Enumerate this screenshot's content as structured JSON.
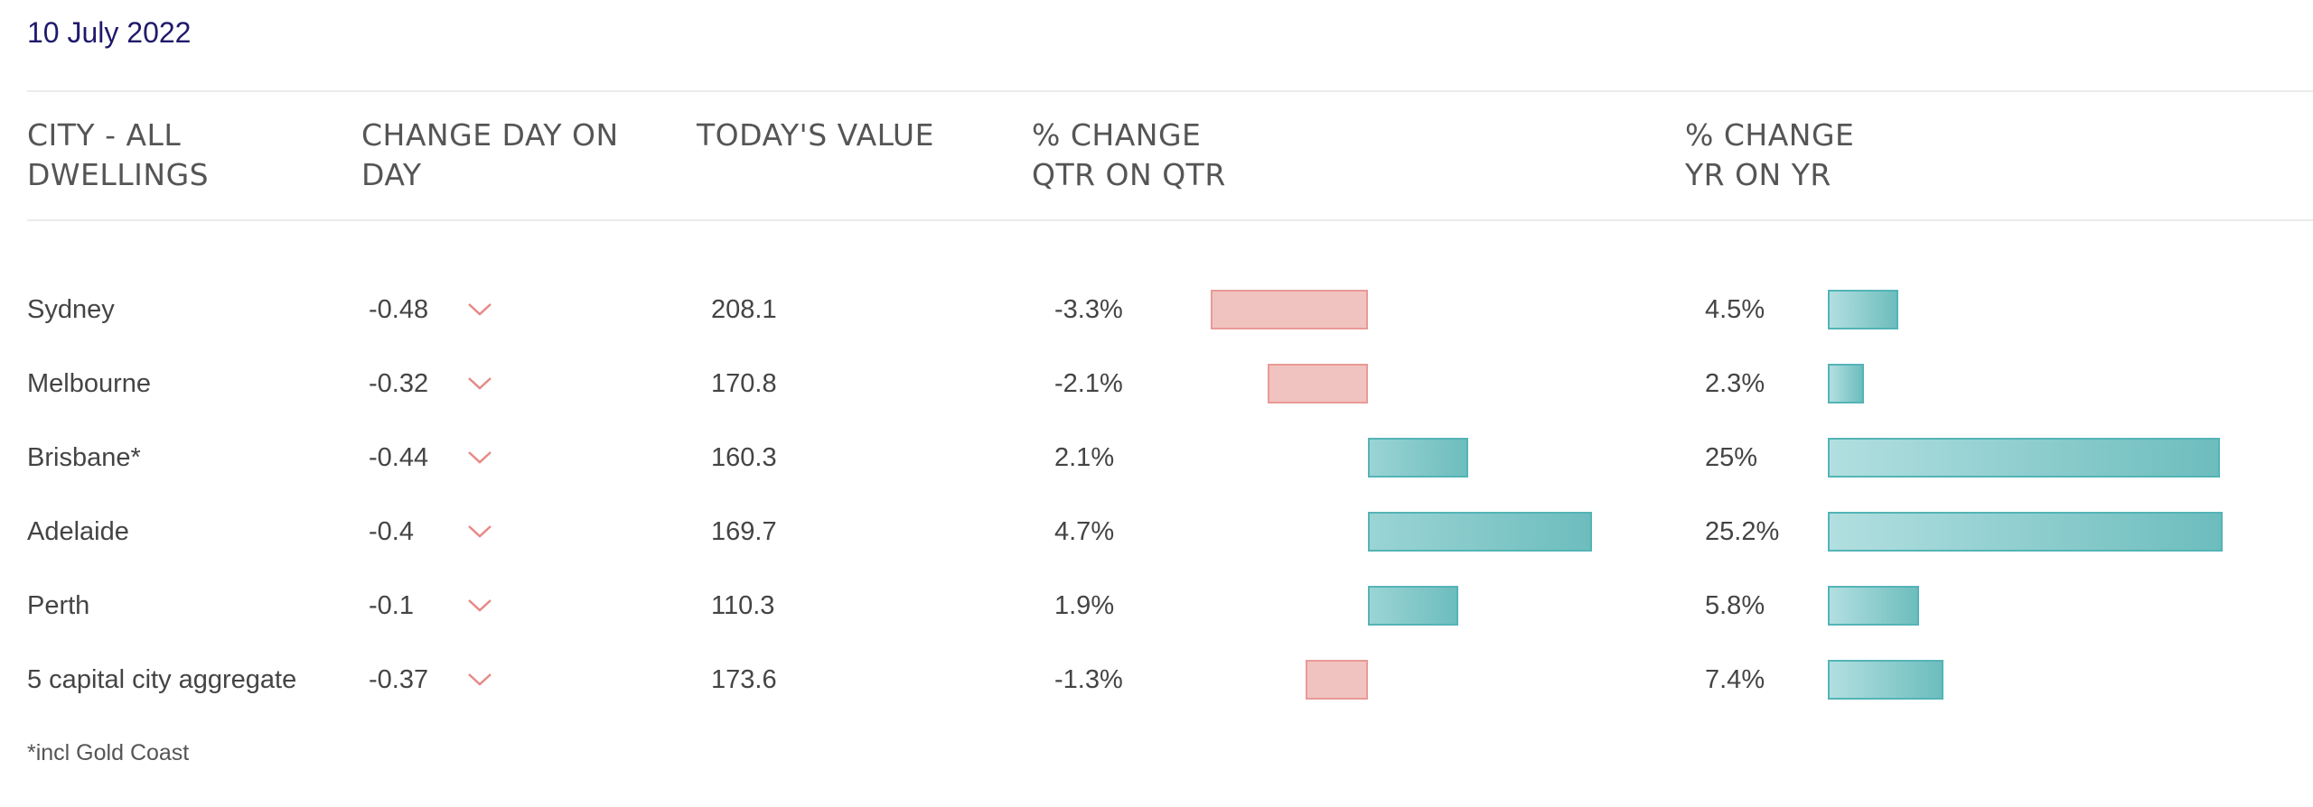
{
  "date": "10 July 2022",
  "headers": {
    "city": "CITY - ALL\nDWELLINGS",
    "change_day": "CHANGE DAY ON\nDAY",
    "today_value": "TODAY'S VALUE",
    "qtr": "% CHANGE\nQTR ON QTR",
    "yr": "% CHANGE\nYR ON YR"
  },
  "colors": {
    "negative": "#e89a96",
    "positive": "#54b4b6",
    "date": "#1f1a6b"
  },
  "icons": {
    "day_trend": "chevron-down-icon"
  },
  "rows": [
    {
      "city": "Sydney",
      "change_day": "-0.48",
      "today_value": "208.1",
      "qtr": "-3.3%",
      "yr": "4.5%"
    },
    {
      "city": "Melbourne",
      "change_day": "-0.32",
      "today_value": "170.8",
      "qtr": "-2.1%",
      "yr": "2.3%"
    },
    {
      "city": "Brisbane*",
      "change_day": "-0.44",
      "today_value": "160.3",
      "qtr": "2.1%",
      "yr": "25%"
    },
    {
      "city": "Adelaide",
      "change_day": "-0.4",
      "today_value": "169.7",
      "qtr": "4.7%",
      "yr": "25.2%"
    },
    {
      "city": "Perth",
      "change_day": "-0.1",
      "today_value": "110.3",
      "qtr": "1.9%",
      "yr": "5.8%"
    },
    {
      "city": "5 capital city aggregate",
      "change_day": "-0.37",
      "today_value": "173.6",
      "qtr": "-1.3%",
      "yr": "7.4%"
    }
  ],
  "chart_data": {
    "type": "table",
    "columns": [
      "CITY - ALL DWELLINGS",
      "CHANGE DAY ON DAY",
      "TODAY'S VALUE",
      "% CHANGE QTR ON QTR",
      "% CHANGE YR ON YR"
    ],
    "categories": [
      "Sydney",
      "Melbourne",
      "Brisbane*",
      "Adelaide",
      "Perth",
      "5 capital city aggregate"
    ],
    "change_day": [
      -0.48,
      -0.32,
      -0.44,
      -0.4,
      -0.1,
      -0.37
    ],
    "today_value": [
      208.1,
      170.8,
      160.3,
      169.7,
      110.3,
      173.6
    ],
    "qtr_change_pct": [
      -3.3,
      -2.1,
      2.1,
      4.7,
      1.9,
      -1.3
    ],
    "yr_change_pct": [
      4.5,
      2.3,
      25,
      25.2,
      5.8,
      7.4
    ]
  },
  "footnote": "*incl Gold Coast"
}
